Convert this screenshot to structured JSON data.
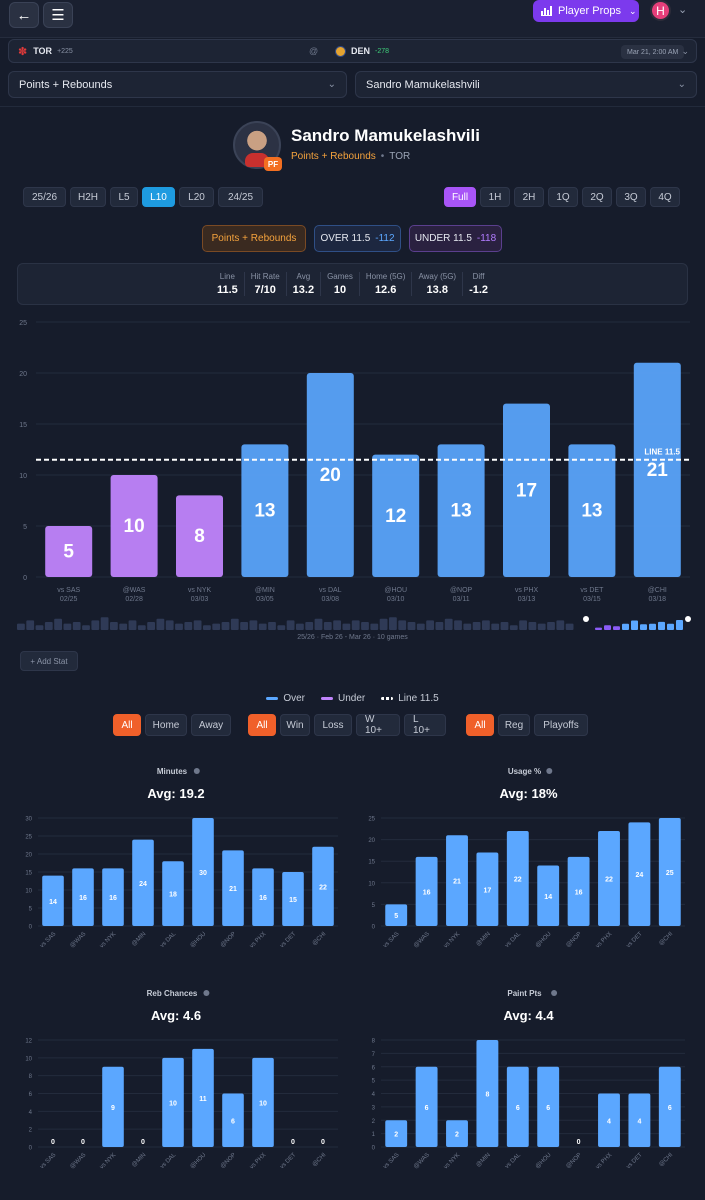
{
  "header": {
    "back_icon": "arrow-left-icon",
    "menu_icon": "menu-icon",
    "props_button": "Player Props",
    "avatar_initial": "H"
  },
  "game": {
    "away_team": "TOR",
    "away_odds": "+225",
    "at": "@",
    "home_team": "DEN",
    "home_odds": "-278",
    "datetime": "Mar 21, 2:00 AM"
  },
  "selectors": {
    "stat": "Points + Rebounds",
    "player": "Sandro Mamukelashvili"
  },
  "player": {
    "name": "Sandro Mamukelashvili",
    "position": "PF",
    "stat": "Points + Rebounds",
    "team": "TOR"
  },
  "ranges": [
    "25/26",
    "H2H",
    "L5",
    "L10",
    "L20",
    "24/25"
  ],
  "active_range": "L10",
  "periods": [
    "Full",
    "1H",
    "2H",
    "1Q",
    "2Q",
    "3Q",
    "4Q"
  ],
  "active_period": "Full",
  "line_pills": {
    "stat": "Points + Rebounds",
    "over_label": "OVER 11.5",
    "over_odds": "-112",
    "under_label": "UNDER 11.5",
    "under_odds": "-118"
  },
  "summary": [
    {
      "label": "Line",
      "value": "11.5"
    },
    {
      "label": "Hit Rate",
      "value": "7/10"
    },
    {
      "label": "Avg",
      "value": "13.2"
    },
    {
      "label": "Games",
      "value": "10"
    },
    {
      "label": "Home (5G)",
      "value": "12.6"
    },
    {
      "label": "Away (5G)",
      "value": "13.8"
    },
    {
      "label": "Diff",
      "value": "-1.2"
    }
  ],
  "chart_data": [
    {
      "type": "bar",
      "categories": [
        "vs SAS 02/25",
        "@WAS 02/28",
        "vs NYK 03/03",
        "@MIN 03/05",
        "vs DAL 03/08",
        "@HOU 03/10",
        "@NOP 03/11",
        "vs PHX 03/13",
        "vs DET 03/15",
        "@CHI 03/18"
      ],
      "opponents": [
        "vs SAS",
        "@WAS",
        "vs NYK",
        "@MIN",
        "vs DAL",
        "@HOU",
        "@NOP",
        "vs PHX",
        "vs DET",
        "@CHI"
      ],
      "dates": [
        "02/25",
        "02/28",
        "03/03",
        "03/05",
        "03/08",
        "03/10",
        "03/11",
        "03/13",
        "03/15",
        "03/18"
      ],
      "values": [
        5,
        10,
        8,
        13,
        20,
        12,
        13,
        17,
        13,
        21
      ],
      "ylim": [
        0,
        25
      ],
      "yticks": [
        0,
        5,
        10,
        15,
        20,
        25
      ],
      "line": 11.5,
      "line_label": "LINE 11.5",
      "colors": {
        "over": "#5ba7ff",
        "under": "#c084fc"
      }
    },
    {
      "type": "bar",
      "title": "Minutes",
      "avg_label": "Avg: 19.2",
      "categories": [
        "vs SAS",
        "@WAS",
        "vs NYK",
        "@MIN",
        "vs DAL",
        "@HOU",
        "@NOP",
        "vs PHX",
        "vs DET",
        "@CHI"
      ],
      "values": [
        14,
        16,
        16,
        24,
        18,
        30,
        21,
        16,
        15,
        22
      ],
      "ylim": [
        0,
        30
      ],
      "yticks": [
        0,
        5,
        10,
        15,
        20,
        25,
        30
      ]
    },
    {
      "type": "bar",
      "title": "Usage %",
      "avg_label": "Avg: 18%",
      "categories": [
        "vs SAS",
        "@WAS",
        "vs NYK",
        "@MIN",
        "vs DAL",
        "@HOU",
        "@NOP",
        "vs PHX",
        "vs DET",
        "@CHI"
      ],
      "values": [
        5,
        16,
        21,
        17,
        22,
        14,
        16,
        22,
        24,
        25
      ],
      "ylim": [
        0,
        25
      ],
      "yticks": [
        0,
        5,
        10,
        15,
        20,
        25
      ]
    },
    {
      "type": "bar",
      "title": "Reb Chances",
      "avg_label": "Avg: 4.6",
      "categories": [
        "vs SAS",
        "@WAS",
        "vs NYK",
        "@MIN",
        "vs DAL",
        "@HOU",
        "@NOP",
        "vs PHX",
        "vs DET",
        "@CHI"
      ],
      "values": [
        0,
        0,
        9,
        0,
        10,
        11,
        6,
        10,
        0,
        0
      ],
      "ylim": [
        0,
        12
      ],
      "yticks": [
        0,
        2,
        4,
        6,
        8,
        10,
        12
      ]
    },
    {
      "type": "bar",
      "title": "Paint Pts",
      "avg_label": "Avg: 4.4",
      "categories": [
        "vs SAS",
        "@WAS",
        "vs NYK",
        "@MIN",
        "vs DAL",
        "@HOU",
        "@NOP",
        "vs PHX",
        "vs DET",
        "@CHI"
      ],
      "values": [
        2,
        6,
        2,
        8,
        6,
        6,
        0,
        4,
        4,
        6
      ],
      "ylim": [
        0,
        8
      ],
      "yticks": [
        0,
        1,
        2,
        3,
        4,
        5,
        6,
        7,
        8
      ]
    }
  ],
  "timeline": {
    "caption": "25/26 · Feb 26 - Mar 26 · 10 games"
  },
  "add_stat": "+ Add Stat",
  "legend": {
    "over": "Over",
    "under": "Under",
    "line": "Line 11.5"
  },
  "filters": {
    "location": [
      "All",
      "Home",
      "Away"
    ],
    "result": [
      "All",
      "Win",
      "Loss",
      "W 10+",
      "L 10+"
    ],
    "season": [
      "All",
      "Reg",
      "Playoffs"
    ]
  }
}
